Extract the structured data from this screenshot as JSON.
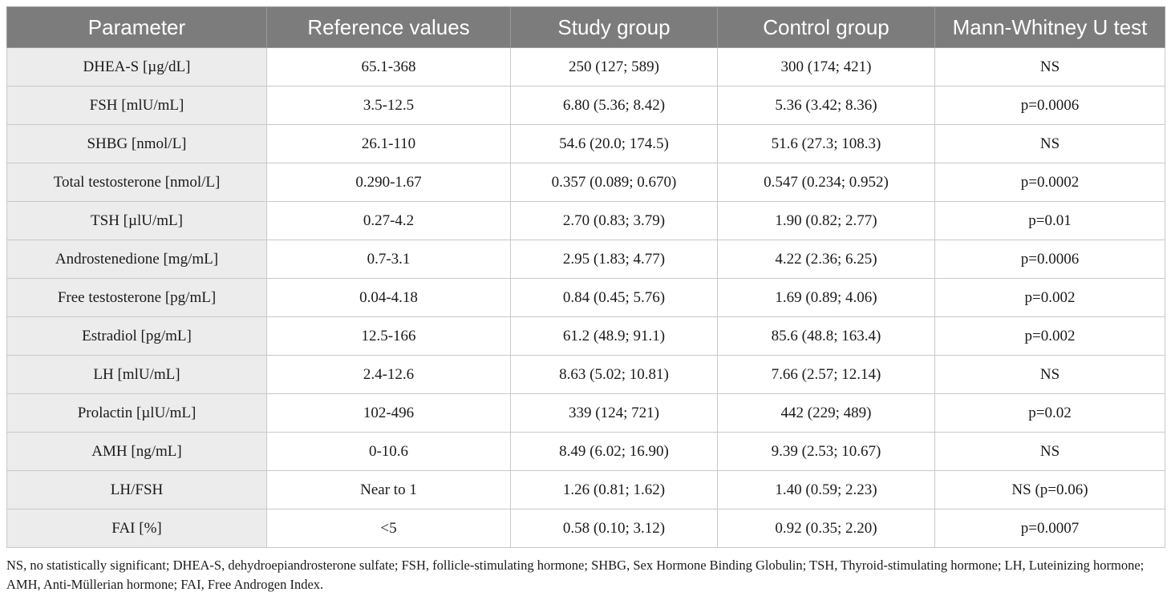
{
  "table": {
    "headers": [
      "Parameter",
      "Reference values",
      "Study group",
      "Control group",
      "Mann-Whitney U test"
    ],
    "rows": [
      {
        "parameter": "DHEA-S [µg/dL]",
        "reference": "65.1-368",
        "study": "250 (127; 589)",
        "control": "300 (174; 421)",
        "test": "NS"
      },
      {
        "parameter": "FSH [mlU/mL]",
        "reference": "3.5-12.5",
        "study": "6.80 (5.36; 8.42)",
        "control": "5.36 (3.42; 8.36)",
        "test": "p=0.0006"
      },
      {
        "parameter": "SHBG [nmol/L]",
        "reference": "26.1-110",
        "study": "54.6 (20.0; 174.5)",
        "control": "51.6 (27.3; 108.3)",
        "test": "NS"
      },
      {
        "parameter": "Total testosterone [nmol/L]",
        "reference": "0.290-1.67",
        "study": "0.357 (0.089; 0.670)",
        "control": "0.547 (0.234; 0.952)",
        "test": "p=0.0002"
      },
      {
        "parameter": "TSH [µlU/mL]",
        "reference": "0.27-4.2",
        "study": "2.70 (0.83; 3.79)",
        "control": "1.90 (0.82; 2.77)",
        "test": "p=0.01"
      },
      {
        "parameter": "Androstenedione [mg/mL]",
        "reference": "0.7-3.1",
        "study": "2.95 (1.83; 4.77)",
        "control": "4.22 (2.36; 6.25)",
        "test": "p=0.0006"
      },
      {
        "parameter": "Free testosterone [pg/mL]",
        "reference": "0.04-4.18",
        "study": "0.84 (0.45; 5.76)",
        "control": "1.69 (0.89; 4.06)",
        "test": "p=0.002"
      },
      {
        "parameter": "Estradiol [pg/mL]",
        "reference": "12.5-166",
        "study": "61.2 (48.9; 91.1)",
        "control": "85.6 (48.8; 163.4)",
        "test": "p=0.002"
      },
      {
        "parameter": "LH [mlU/mL]",
        "reference": "2.4-12.6",
        "study": "8.63 (5.02; 10.81)",
        "control": "7.66 (2.57; 12.14)",
        "test": "NS"
      },
      {
        "parameter": "Prolactin [µlU/mL]",
        "reference": "102-496",
        "study": "339 (124; 721)",
        "control": "442 (229; 489)",
        "test": "p=0.02"
      },
      {
        "parameter": "AMH [ng/mL]",
        "reference": "0-10.6",
        "study": "8.49 (6.02; 16.90)",
        "control": "9.39 (2.53; 10.67)",
        "test": "NS"
      },
      {
        "parameter": "LH/FSH",
        "reference": "Near to 1",
        "study": "1.26 (0.81; 1.62)",
        "control": "1.40 (0.59; 2.23)",
        "test": "NS (p=0.06)"
      },
      {
        "parameter": "FAI [%]",
        "reference": "<5",
        "study": "0.58 (0.10; 3.12)",
        "control": "0.92 (0.35; 2.20)",
        "test": "p=0.0007"
      }
    ]
  },
  "footnote": "NS, no statistically significant; DHEA-S, dehydroepiandrosterone sulfate; FSH, follicle-stimulating hormone; SHBG, Sex Hormone Binding Globulin; TSH, Thyroid-stimulating hormone; LH, Luteinizing hormone; AMH, Anti-Müllerian hormone; FAI, Free Androgen Index.",
  "colors": {
    "header_bg": "#7c7c7c",
    "header_text": "#ffffff",
    "parameter_col_bg": "#ececec",
    "border": "#c9c9c9"
  }
}
